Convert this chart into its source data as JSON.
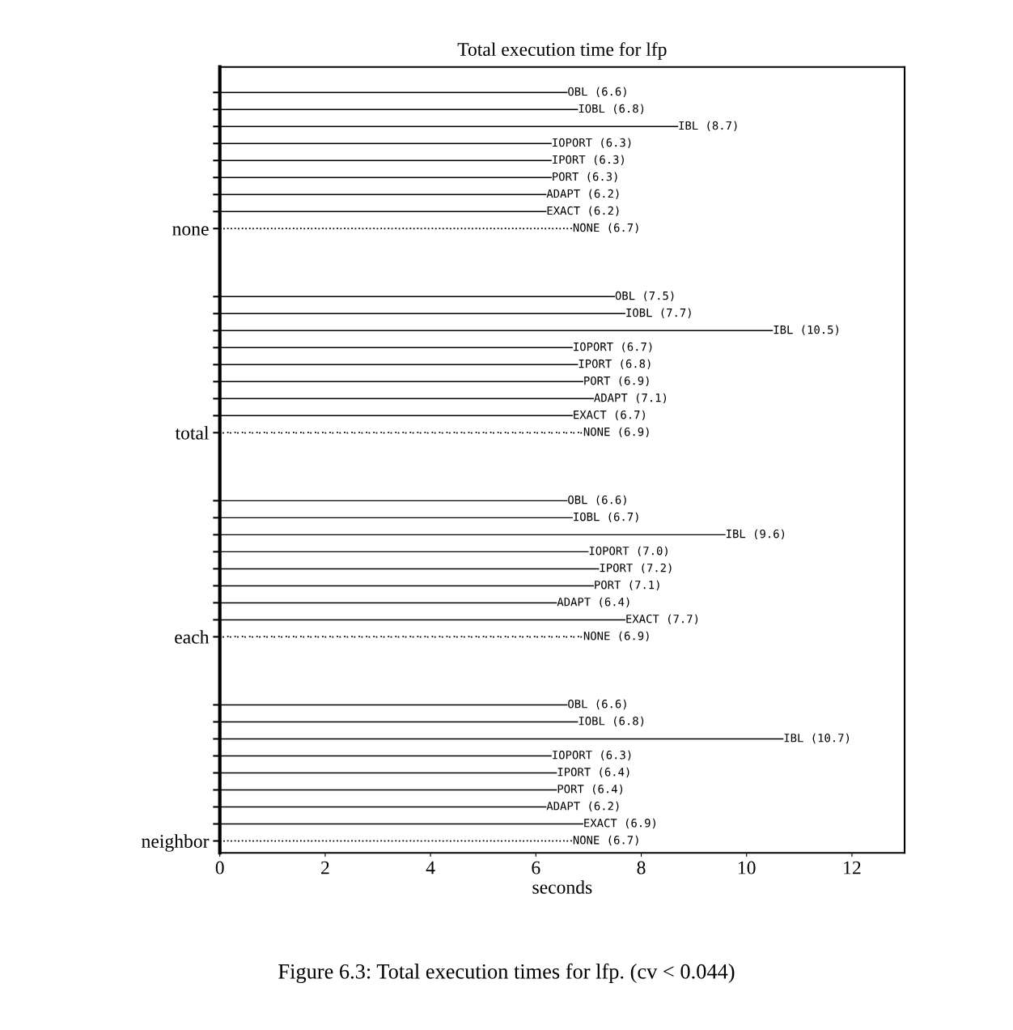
{
  "chart_data": {
    "type": "bar",
    "orientation": "horizontal",
    "title": "Total execution time for lfp",
    "xlabel": "seconds",
    "annotations": [
      "Figure 6.3: Total execution times for lfp. (cv < 0.044)"
    ],
    "categories": [
      null,
      null,
      null,
      null,
      null,
      null,
      null,
      null,
      "none",
      null,
      null,
      null,
      null,
      null,
      null,
      null,
      null,
      null,
      null,
      null,
      "total",
      null,
      null,
      null,
      null,
      null,
      null,
      null,
      null,
      null,
      null,
      null,
      "each",
      null,
      null,
      null,
      null,
      null,
      null,
      null,
      null,
      null,
      null,
      null,
      "neighbor"
    ],
    "series": [
      {
        "color": "#000000",
        "line_style": "solid",
        "values": [
          6.6,
          6.8,
          8.7,
          6.3,
          6.3,
          6.3,
          6.2,
          6.2,
          null,
          null,
          null,
          null,
          7.5,
          7.7,
          10.5,
          6.7,
          6.8,
          6.9,
          7.1,
          6.7,
          null,
          null,
          null,
          null,
          6.6,
          6.7,
          9.6,
          7.0,
          7.2,
          7.1,
          6.4,
          7.7,
          null,
          null,
          null,
          null,
          6.6,
          6.8,
          10.7,
          6.3,
          6.4,
          6.4,
          6.2,
          6.9,
          null
        ],
        "value_labels": [
          "OBL (6.6)",
          "IOBL (6.8)",
          "IBL (8.7)",
          "IOPORT (6.3)",
          "IPORT (6.3)",
          "PORT (6.3)",
          "ADAPT (6.2)",
          "EXACT (6.2)",
          null,
          null,
          null,
          null,
          "OBL (7.5)",
          "IOBL (7.7)",
          "IBL (10.5)",
          "IOPORT (6.7)",
          "IPORT (6.8)",
          "PORT (6.9)",
          "ADAPT (7.1)",
          "EXACT (6.7)",
          null,
          null,
          null,
          null,
          "OBL (6.6)",
          "IOBL (6.7)",
          "IBL (9.6)",
          "IOPORT (7.0)",
          "IPORT (7.2)",
          "PORT (7.1)",
          "ADAPT (6.4)",
          "EXACT (7.7)",
          null,
          null,
          null,
          null,
          "OBL (6.6)",
          "IOBL (6.8)",
          "IBL (10.7)",
          "IOPORT (6.3)",
          "IPORT (6.4)",
          "PORT (6.4)",
          "ADAPT (6.2)",
          "EXACT (6.9)",
          null
        ]
      },
      {
        "color": "#000000",
        "line_style": "dotted",
        "values": [
          null,
          null,
          null,
          null,
          null,
          null,
          null,
          null,
          6.7,
          null,
          null,
          null,
          null,
          null,
          null,
          null,
          null,
          null,
          null,
          null,
          6.9,
          null,
          null,
          null,
          null,
          null,
          null,
          null,
          null,
          null,
          null,
          null,
          6.9,
          null,
          null,
          null,
          null,
          null,
          null,
          null,
          null,
          null,
          null,
          null,
          6.7
        ],
        "value_labels": [
          null,
          null,
          null,
          null,
          null,
          null,
          null,
          null,
          "NONE (6.7)",
          null,
          null,
          null,
          null,
          null,
          null,
          null,
          null,
          null,
          null,
          null,
          "NONE (6.9)",
          null,
          null,
          null,
          null,
          null,
          null,
          null,
          null,
          null,
          null,
          null,
          "NONE (6.9)",
          null,
          null,
          null,
          null,
          null,
          null,
          null,
          null,
          null,
          null,
          null,
          "NONE (6.7)"
        ]
      }
    ],
    "xlim": [
      0,
      13
    ],
    "xticks": [
      0,
      2,
      4,
      6,
      8,
      10,
      12
    ],
    "grid": false,
    "legend": false
  }
}
